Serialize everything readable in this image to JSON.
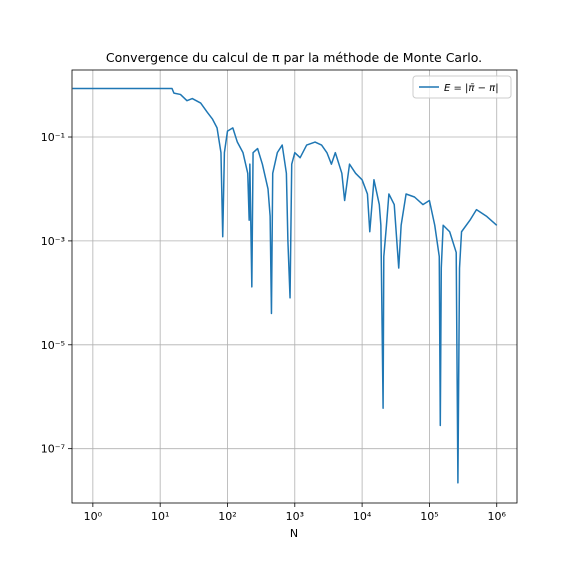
{
  "chart_data": {
    "type": "line",
    "title": "Convergence du calcul de π par la méthode de Monte Carlo.",
    "x_label": "N",
    "log_x": true,
    "log_y": true,
    "grid": true,
    "legend": "upper right",
    "xlim": [
      0.49,
      2000000
    ],
    "ylim": [
      9e-09,
      1.95
    ],
    "xticks": [
      {
        "value": 1,
        "label": "10⁰"
      },
      {
        "value": 10,
        "label": "10¹"
      },
      {
        "value": 100,
        "label": "10²"
      },
      {
        "value": 1000,
        "label": "10³"
      },
      {
        "value": 10000,
        "label": "10⁴"
      },
      {
        "value": 100000,
        "label": "10⁵"
      },
      {
        "value": 1000000,
        "label": "10⁶"
      }
    ],
    "yticks": [
      {
        "value": 1e-07,
        "label": "10⁻⁷"
      },
      {
        "value": 1e-05,
        "label": "10⁻⁵"
      },
      {
        "value": 0.001,
        "label": "10⁻³"
      },
      {
        "value": 0.1,
        "label": "10⁻¹"
      }
    ],
    "x": [
      0.5,
      15,
      16,
      20,
      25,
      30,
      40,
      50,
      60,
      70,
      80,
      85,
      90,
      100,
      120,
      140,
      170,
      200,
      210,
      215,
      230,
      240,
      280,
      330,
      400,
      430,
      450,
      470,
      550,
      650,
      750,
      790,
      850,
      900,
      1000,
      1200,
      1500,
      2000,
      2500,
      3000,
      3500,
      4000,
      5000,
      5500,
      6500,
      8000,
      10000,
      12000,
      13000,
      15000,
      18000,
      19000,
      20500,
      21000,
      23000,
      25000,
      30000,
      35000,
      38000,
      45000,
      60000,
      80000,
      100000,
      120000,
      140000,
      145000,
      150000,
      160000,
      200000,
      250000,
      265000,
      280000,
      300000,
      400000,
      500000,
      700000,
      1000000
    ],
    "series": [
      {
        "name": "E = |π̄ − π|",
        "color": "#1f77b4",
        "values": [
          0.858,
          0.858,
          0.7,
          0.66,
          0.5,
          0.55,
          0.45,
          0.3,
          0.22,
          0.15,
          0.05,
          0.0012,
          0.05,
          0.13,
          0.15,
          0.08,
          0.05,
          0.02,
          0.0025,
          0.03,
          0.00013,
          0.05,
          0.06,
          0.03,
          0.01,
          0.003,
          4e-05,
          0.02,
          0.05,
          0.07,
          0.02,
          0.001,
          8e-05,
          0.03,
          0.05,
          0.04,
          0.07,
          0.08,
          0.07,
          0.05,
          0.03,
          0.05,
          0.02,
          0.006,
          0.03,
          0.02,
          0.015,
          0.008,
          0.0015,
          0.015,
          0.005,
          0.002,
          6e-07,
          0.0005,
          0.002,
          0.008,
          0.005,
          0.0003,
          0.002,
          0.008,
          0.007,
          0.005,
          0.006,
          0.002,
          0.0005,
          2.8e-07,
          0.0003,
          0.002,
          0.0015,
          0.0006,
          2.2e-08,
          0.0003,
          0.0015,
          0.0025,
          0.004,
          0.003,
          0.002
        ]
      }
    ]
  }
}
